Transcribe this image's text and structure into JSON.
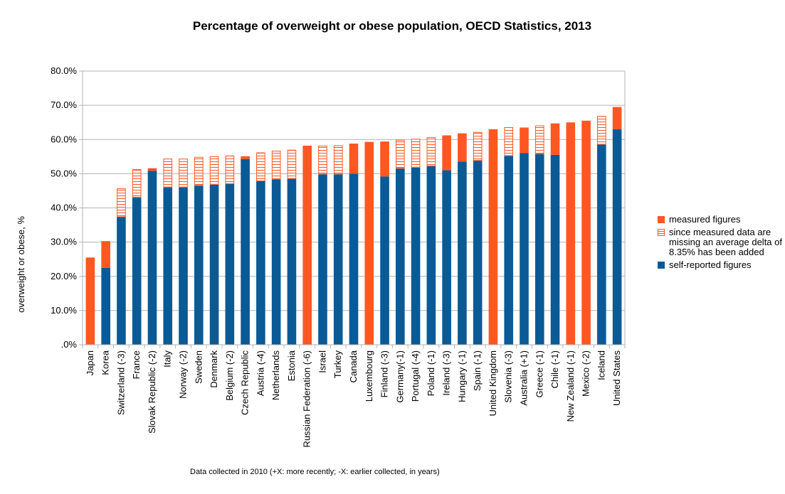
{
  "chart_data": {
    "type": "bar",
    "title": "Percentage of overweight or obese population, OECD Statistics, 2013",
    "ylabel": "overweight or obese, %",
    "xlabel": "",
    "ylim": [
      0,
      80
    ],
    "yticks": [
      ".0%",
      "10.0%",
      "20.0%",
      "30.0%",
      "40.0%",
      "50.0%",
      "60.0%",
      "70.0%",
      "80.0%"
    ],
    "grid": true,
    "legend_position": "right",
    "stacked": true,
    "categories": [
      "Japan",
      "Korea",
      "Switzerland (-3)",
      "France",
      "Slovak Republic (-2)",
      "Italy",
      "Norway (-2)",
      "Sweden",
      "Denmark",
      "Belgium (-2)",
      "Czech Republic",
      "Austria (-4)",
      "Netherlands",
      "Estonia",
      "Russian Federation (-6)",
      "Israel",
      "Turkey",
      "Canada",
      "Luxembourg",
      "Finland (-3)",
      "Germany(-1)",
      "Portugal (-4)",
      "Poland (-1)",
      "Ireland (-3)",
      "Hungary (-1)",
      "Spain (-1)",
      "United Kingdom",
      "Slovenia (-3)",
      "Australia (+1)",
      "Greece (-1)",
      "Chile (-1)",
      "New Zealand (-1)",
      "Mexico (-2)",
      "Iceland",
      "United States"
    ],
    "series": [
      {
        "name": "self-reported figures",
        "color": "#0a5a96",
        "values": [
          0,
          22.5,
          37.3,
          43,
          50.8,
          46,
          46,
          46.5,
          46.8,
          47,
          54.3,
          47.8,
          48.3,
          48.5,
          0,
          49.8,
          49.8,
          50,
          0,
          49.2,
          51.5,
          51.8,
          52.2,
          51,
          53.5,
          53.8,
          0,
          55.2,
          56,
          55.7,
          55.5,
          0,
          0,
          58.5,
          63
        ]
      },
      {
        "name": "since measured data are missing an average delta of 8.35% has been added",
        "color": "#ff5722",
        "pattern": "horizontal-stripes",
        "values": [
          0,
          0,
          8.4,
          8.3,
          0,
          8.4,
          8.4,
          8.4,
          8.3,
          8.3,
          0,
          8.4,
          8.4,
          8.5,
          0,
          8.4,
          8.5,
          0,
          0,
          0,
          8.4,
          8.4,
          8.5,
          0,
          0,
          8.4,
          0,
          8.4,
          0,
          8.4,
          0,
          0,
          0,
          8.4,
          0
        ]
      },
      {
        "name": "measured figures",
        "color": "#ff5722",
        "values": [
          25.5,
          7.8,
          0,
          0,
          0.8,
          0,
          0,
          0,
          0,
          0,
          0.8,
          0,
          0,
          0,
          58.2,
          0,
          0,
          8.8,
          59.3,
          10.2,
          0,
          0,
          0,
          10.2,
          8.3,
          0,
          63,
          0,
          7.5,
          0,
          9.2,
          65,
          65.5,
          0,
          6.5
        ]
      }
    ]
  },
  "legend": {
    "measured": "measured figures",
    "delta": "since measured data are missing an average delta of 8.35% has been added",
    "self": "self-reported figures"
  },
  "footnote": "Data collected in 2010 (+X: more recently; -X: earlier collected, in years)"
}
